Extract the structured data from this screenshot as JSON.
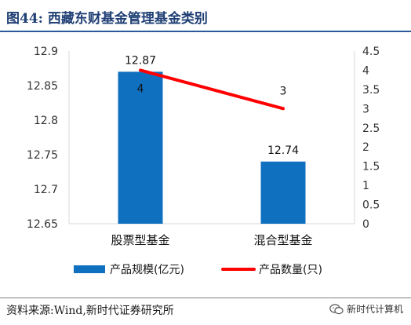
{
  "header": {
    "title": "图44:  西藏东财基金管理基金类别"
  },
  "footer": {
    "source": "资料来源:Wind,新时代证券研究所",
    "watermark": "新时代计算机"
  },
  "colors": {
    "bar": "#1070c0",
    "line": "#ff0000",
    "title": "#1f3f74",
    "rule": "#2a5a9b"
  },
  "chart_data": {
    "type": "bar",
    "categories": [
      "股票型基金",
      "混合型基金"
    ],
    "series": [
      {
        "name": "产品规模(亿元)",
        "kind": "bar",
        "axis": "left",
        "values": [
          12.87,
          12.74
        ],
        "labels": [
          "12.87",
          "12.74"
        ]
      },
      {
        "name": "产品数量(只)",
        "kind": "line",
        "axis": "right",
        "values": [
          4,
          3
        ],
        "labels": [
          "4",
          "3"
        ]
      }
    ],
    "y_left": {
      "min": 12.65,
      "max": 12.9,
      "ticks": [
        "12.9",
        "12.85",
        "12.8",
        "12.75",
        "12.7",
        "12.65"
      ]
    },
    "y_right": {
      "min": 0,
      "max": 4.5,
      "ticks": [
        "4.5",
        "4",
        "3.5",
        "3",
        "2.5",
        "2",
        "1.5",
        "1",
        "0.5",
        "0"
      ]
    },
    "grid": false,
    "legend_position": "bottom"
  }
}
